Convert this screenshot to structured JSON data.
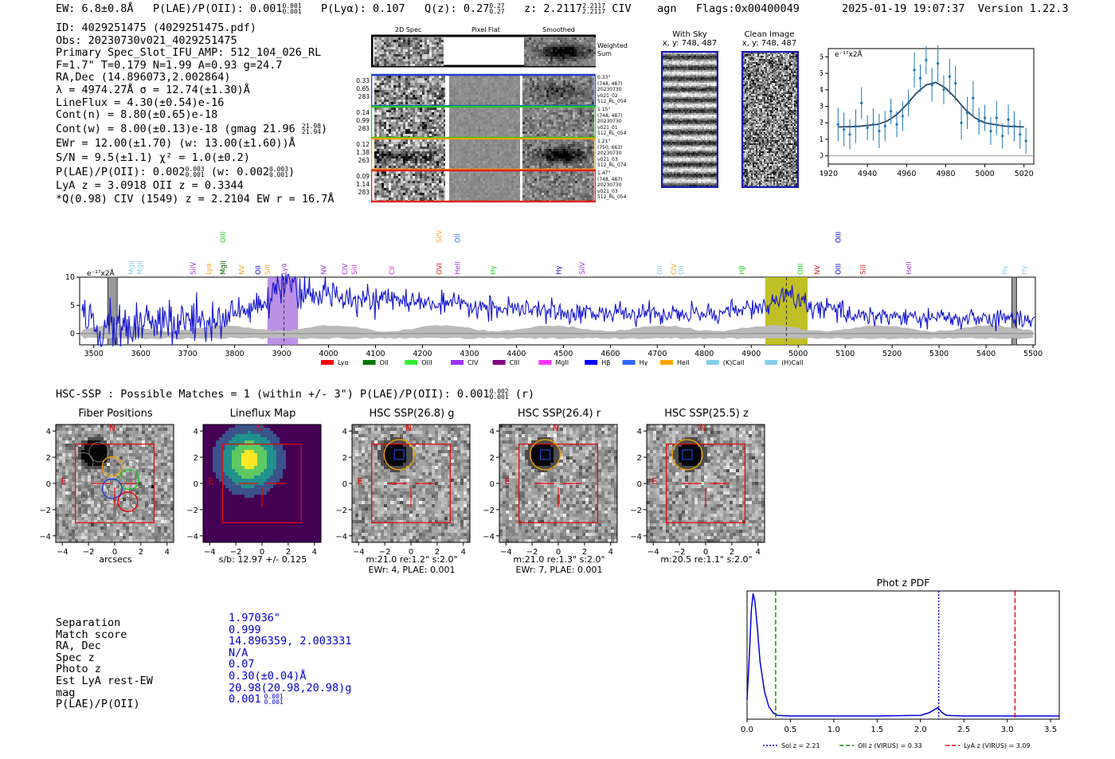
{
  "header": {
    "ew": "EW: 6.8±0.8Å",
    "plae_prefix": "P(LAE)/P(OII): 0.001",
    "plae_hi": "0.001",
    "plae_lo": "0.001",
    "plya": "P(Lyα): 0.107",
    "qz_prefix": "Q(z): 0.27",
    "qz_hi": "0.27",
    "qz_lo": "0.27",
    "z_prefix": "z: 2.2117",
    "z_hi": "2.2117",
    "z_lo": "2.2117",
    "line": "CIV",
    "agn": "agn",
    "flags": "Flags:0x00400049",
    "datetime": "2025-01-19 19:07:37",
    "version": "Version 1.22.3"
  },
  "info": {
    "id": "ID: 4029251475 (4029251475.pdf)",
    "obs": "Obs: 20230730v021_4029251475",
    "primary": "Primary Spec_Slot_IFU_AMP: 512_104_026_RL",
    "fit": "F=1.7\"  T=0.179  N=1.99  A=0.93  g=24.7",
    "radec": "RA,Dec (14.896073,2.002864)",
    "lambda": "λ = 4974.27Å  σ = 12.74(±1.30)Å",
    "lineflux": "LineFlux = 4.30(±0.54)e-16",
    "contn": "Cont(n) = 8.80(±0.65)e-18",
    "contw_prefix": "Cont(w) = 8.00(±0.13)e-18 (gmag 21.96",
    "contw_hi": "21.98",
    "contw_lo": "21.94",
    "contw_suffix": ")",
    "ewr": "EWr = 12.00(±1.70) (w: 13.00(±1.60))Å",
    "sn": "S/N = 9.5(±1.1)  χ² = 1.0(±0.2)",
    "plae_prefix": "P(LAE)/P(OII): 0.002",
    "plae_hi": "0.003",
    "plae_lo": "0.001",
    "plae_mid": "(w: 0.002",
    "plae_w_hi": "0.003",
    "plae_w_lo": "0.001",
    "plae_suffix": ")",
    "lya": "LyA z = 3.0918  OII z = 0.3344",
    "civ": "*Q(0.98) CIV (1549) z = 2.2104  EW r = 16.7Å"
  },
  "cutouts": {
    "col_2d": "2D Spec",
    "col_flat": "Pixel Flat",
    "col_smooth": "Smoothed",
    "weighted": "Weighted Sum",
    "rows": [
      {
        "l1": "0.33",
        "l2": "0.65",
        "l3": "283",
        "r1": "0.33\"",
        "r2": "(748, 487)",
        "r3": "20230730",
        "r4": "v021_02",
        "r5": "512_RL_054",
        "color": "#1f3fd6"
      },
      {
        "l1": "0.14",
        "l2": "0.99",
        "l3": "283",
        "r1": "1.15\"",
        "r2": "(748, 487)",
        "r3": "20230730",
        "r4": "v021_01",
        "r5": "512_RL_054",
        "color": "#22cc22"
      },
      {
        "l1": "0.12",
        "l2": "1.38",
        "l3": "263",
        "r1": "1.21\"",
        "r2": "(750, 663)",
        "r3": "20230730",
        "r4": "v021_03",
        "r5": "512_RL_074",
        "color": "#f0a000"
      },
      {
        "l1": "0.09",
        "l2": "1.14",
        "l3": "283",
        "r1": "1.47\"",
        "r2": "(748, 487)",
        "r3": "20230730",
        "r4": "v021_03",
        "r5": "512_RL_054",
        "color": "#dd2222"
      }
    ]
  },
  "ccd": {
    "sky_title": "With Sky",
    "sky_xy": "x, y: 748, 487",
    "clean_title": "Clean Image",
    "clean_xy": "x, y: 748, 487"
  },
  "zoom_spec": {
    "ylabel": "e⁻¹⁷x2Å",
    "xticks": [
      "4920",
      "4940",
      "4960",
      "4980",
      "5000",
      "5020"
    ],
    "yticks": [
      "0",
      "1",
      "2",
      "3",
      "4",
      "5",
      "6"
    ]
  },
  "main_spec": {
    "ylabel": "e⁻¹⁷x2Å",
    "xticks": [
      "3500",
      "3600",
      "3700",
      "3800",
      "3900",
      "4000",
      "4100",
      "4200",
      "4300",
      "4400",
      "4500",
      "4600",
      "4700",
      "4800",
      "4900",
      "5000",
      "5100",
      "5200",
      "5300",
      "5400",
      "5500"
    ],
    "yticks": [
      "0",
      "5",
      "10"
    ],
    "line_labels": [
      {
        "t": "MgII",
        "w": 3580,
        "c": "#87ceeb",
        "row": 1
      },
      {
        "t": "MgII",
        "w": 3598,
        "c": "#87ceeb",
        "row": 1
      },
      {
        "t": "SiIV",
        "w": 3712,
        "c": "#9933cc",
        "row": 1
      },
      {
        "t": "Lyα",
        "w": 3745,
        "c": "#f5a623",
        "row": 1
      },
      {
        "t": "MgII",
        "w": 3775,
        "c": "#006400",
        "row": 1
      },
      {
        "t": "OIII",
        "w": 3775,
        "c": "#22cc22",
        "row": 0
      },
      {
        "t": "NV",
        "w": 3815,
        "c": "#f5a623",
        "row": 1
      },
      {
        "t": "OII",
        "w": 3850,
        "c": "#0000cc",
        "row": 1
      },
      {
        "t": "SiII",
        "w": 3870,
        "c": "#f5a623",
        "row": 1
      },
      {
        "t": "Lyα",
        "w": 3905,
        "c": "#9933cc",
        "row": 1
      },
      {
        "t": "NV",
        "w": 3990,
        "c": "#9933cc",
        "row": 1
      },
      {
        "t": "CIV",
        "w": 4035,
        "c": "#9933cc",
        "row": 1
      },
      {
        "t": "SiII",
        "w": 4055,
        "c": "#cc33cc",
        "row": 1
      },
      {
        "t": "CII",
        "w": 4135,
        "c": "#cc33cc",
        "row": 1
      },
      {
        "t": "OVI",
        "w": 4236,
        "c": "#dd2222",
        "row": 1
      },
      {
        "t": "SiIV",
        "w": 4236,
        "c": "#f5a623",
        "row": 0
      },
      {
        "t": "HeII",
        "w": 4275,
        "c": "#9933cc",
        "row": 1
      },
      {
        "t": "OII",
        "w": 4275,
        "c": "#3366ff",
        "row": 0
      },
      {
        "t": "Hγ",
        "w": 4350,
        "c": "#22cc22",
        "row": 1
      },
      {
        "t": "Hγ",
        "w": 4490,
        "c": "#0000cc",
        "row": 1
      },
      {
        "t": "SiIV",
        "w": 4540,
        "c": "#9933cc",
        "row": 1
      },
      {
        "t": "OII",
        "w": 4705,
        "c": "#87ceeb",
        "row": 1
      },
      {
        "t": "CIV",
        "w": 4735,
        "c": "#f5a623",
        "row": 1
      },
      {
        "t": "OII",
        "w": 4750,
        "c": "#87ceeb",
        "row": 1
      },
      {
        "t": "Hβ",
        "w": 4880,
        "c": "#22cc22",
        "row": 1
      },
      {
        "t": "OIII",
        "w": 5005,
        "c": "#22cc22",
        "row": 1
      },
      {
        "t": "NV",
        "w": 5040,
        "c": "#dd2222",
        "row": 1
      },
      {
        "t": "OIII",
        "w": 5085,
        "c": "#0000cc",
        "row": 1
      },
      {
        "t": "OIII",
        "w": 5085,
        "c": "#0000cc",
        "row": 0
      },
      {
        "t": "SiII",
        "w": 5138,
        "c": "#dd2222",
        "row": 1
      },
      {
        "t": "HeII",
        "w": 5235,
        "c": "#9933cc",
        "row": 1
      },
      {
        "t": "Hγ",
        "w": 5440,
        "c": "#87ceeb",
        "row": 1
      },
      {
        "t": "Hγ",
        "w": 5480,
        "c": "#87ceeb",
        "row": 1
      }
    ],
    "legend": [
      {
        "t": "Lyα",
        "c": "#ff0000"
      },
      {
        "t": "OII",
        "c": "#007700"
      },
      {
        "t": "OIII",
        "c": "#33ee33"
      },
      {
        "t": "CIV",
        "c": "#9933ff"
      },
      {
        "t": "CIII",
        "c": "#800080"
      },
      {
        "t": "MgII",
        "c": "#ff33ff"
      },
      {
        "t": "Hβ",
        "c": "#0000ff"
      },
      {
        "t": "Hγ",
        "c": "#3366ff"
      },
      {
        "t": "HeII",
        "c": "#ffa500"
      },
      {
        "t": "(K)CaII",
        "c": "#87ceeb"
      },
      {
        "t": "(H)CaII",
        "c": "#87ceeb"
      }
    ]
  },
  "hsc": {
    "title_prefix": "HSC-SSP : Possible Matches = 1 (within +/- 3\")  P(LAE)/P(OII): 0.001",
    "title_hi": "0.002",
    "title_lo": "0.001",
    "title_suffix": "(r)",
    "panels": [
      {
        "title": "Fiber Positions",
        "cap1": "arcsecs",
        "cap2": ""
      },
      {
        "title": "Lineflux Map",
        "cap1": "s/b: 12.97 +/- 0.125",
        "cap2": ""
      },
      {
        "title": "HSC SSP(26.8) g",
        "cap1": "m:21.0  re:1.2\"  s:2.0\"",
        "cap2": "EWr: 4, PLAE: 0.001"
      },
      {
        "title": "HSC SSP(26.4) r",
        "cap1": "m:21.0  re:1.3\"  s:2.0\"",
        "cap2": "EWr: 7, PLAE: 0.001"
      },
      {
        "title": "HSC SSP(25.5) z",
        "cap1": "m:20.5  re:1.1\"  s:2.0\"",
        "cap2": ""
      }
    ],
    "axis_ticks": [
      "−4",
      "−2",
      "0",
      "2",
      "4"
    ],
    "north": "N",
    "east": "E"
  },
  "match_table": {
    "rows": [
      {
        "label": "Separation",
        "value": "1.97036\""
      },
      {
        "label": "Match score",
        "value": "0.999"
      },
      {
        "label": "RA, Dec",
        "value": "14.896359, 2.003331"
      },
      {
        "label": "Spec z",
        "value": "N/A"
      },
      {
        "label": "Photo z",
        "value": "0.07"
      },
      {
        "label": "Est LyA rest-EW",
        "value": "0.30(±0.04)Å"
      },
      {
        "label": "mag",
        "value": "20.98(20.98,20.98)g"
      },
      {
        "label": "P(LAE)/P(OII)",
        "value": "0.001"
      }
    ],
    "plae_hi": "0.001",
    "plae_lo": "0.001"
  },
  "chart_data": [
    {
      "type": "line",
      "title": "",
      "xlabel": "",
      "ylabel": "e⁻¹⁷x2Å",
      "xlim": [
        4920,
        5025
      ],
      "ylim": [
        -0.5,
        6.5
      ],
      "series": [
        {
          "name": "data",
          "x": [
            4925,
            4928,
            4931,
            4934,
            4937,
            4940,
            4943,
            4946,
            4949,
            4952,
            4955,
            4958,
            4961,
            4964,
            4967,
            4970,
            4973,
            4976,
            4979,
            4982,
            4985,
            4988,
            4991,
            4994,
            4997,
            5000,
            5003,
            5006,
            5009,
            5012,
            5015,
            5018,
            5021
          ],
          "y": [
            1.9,
            1.6,
            1.3,
            1.8,
            3.2,
            1.7,
            1.9,
            1.5,
            1.8,
            2.7,
            1.9,
            2.4,
            3.2,
            5.2,
            4.7,
            5.8,
            4.3,
            5.6,
            4.0,
            4.8,
            4.4,
            2.0,
            2.6,
            3.5,
            2.1,
            2.3,
            1.5,
            2.3,
            1.2,
            2.2,
            1.8,
            1.3,
            0.9
          ]
        },
        {
          "name": "fit",
          "x": [
            4925,
            4935,
            4945,
            4950,
            4955,
            4960,
            4965,
            4970,
            4975,
            4980,
            4985,
            4990,
            4995,
            5000,
            5010,
            5020
          ],
          "y": [
            1.75,
            1.78,
            1.9,
            2.1,
            2.5,
            3.1,
            3.8,
            4.3,
            4.45,
            4.1,
            3.5,
            2.8,
            2.3,
            2.0,
            1.8,
            1.75
          ]
        }
      ],
      "xticks": [
        4920,
        4940,
        4960,
        4980,
        5000,
        5020
      ]
    },
    {
      "type": "line",
      "title": "",
      "xlabel": "",
      "ylabel": "e⁻¹⁷x2Å",
      "xlim": [
        3470,
        5505
      ],
      "ylim": [
        -2,
        10
      ],
      "highlight_bands": [
        {
          "from": 3870,
          "to": 3935,
          "color": "#b07ee0",
          "label": "Lyα"
        },
        {
          "from": 4930,
          "to": 5020,
          "color": "#b5b500",
          "label": "CIV"
        }
      ],
      "gray_bands": [
        {
          "from": 3530,
          "to": 3550
        },
        {
          "from": 5455,
          "to": 5465
        }
      ],
      "envelope": [
        {
          "x": 3500,
          "v": 6
        },
        {
          "x": 3600,
          "v": 12
        },
        {
          "x": 3700,
          "v": 22
        },
        {
          "x": 3800,
          "v": 33
        },
        {
          "x": 3900,
          "v": 59
        },
        {
          "x": 4000,
          "v": 72
        },
        {
          "x": 4100,
          "v": 62
        },
        {
          "x": 4200,
          "v": 55
        },
        {
          "x": 4300,
          "v": 48
        },
        {
          "x": 4400,
          "v": 42
        },
        {
          "x": 4500,
          "v": 38
        },
        {
          "x": 4600,
          "v": 36
        },
        {
          "x": 4700,
          "v": 34
        },
        {
          "x": 4800,
          "v": 35
        },
        {
          "x": 4900,
          "v": 44
        },
        {
          "x": 4980,
          "v": 58
        },
        {
          "x": 5100,
          "v": 36
        },
        {
          "x": 5200,
          "v": 30
        },
        {
          "x": 5300,
          "v": 27
        },
        {
          "x": 5400,
          "v": 26
        },
        {
          "x": 5500,
          "v": 25
        }
      ],
      "xticks": [
        3500,
        3600,
        3700,
        3800,
        3900,
        4000,
        4100,
        4200,
        4300,
        4400,
        4500,
        4600,
        4700,
        4800,
        4900,
        5000,
        5100,
        5200,
        5300,
        5400,
        5500
      ]
    },
    {
      "type": "line",
      "title": "Phot z PDF",
      "xlabel": "",
      "ylabel": "",
      "xlim": [
        0.0,
        3.6
      ],
      "ylim": [
        0,
        1.0
      ],
      "series": [
        {
          "name": "pdf",
          "x": [
            0.0,
            0.03,
            0.05,
            0.07,
            0.09,
            0.12,
            0.15,
            0.2,
            0.25,
            0.3,
            0.35,
            0.5,
            1.0,
            1.5,
            2.0,
            2.1,
            2.15,
            2.2,
            2.25,
            2.3,
            2.5,
            3.0,
            3.6
          ],
          "y": [
            0.15,
            0.55,
            0.85,
            0.98,
            0.92,
            0.7,
            0.45,
            0.22,
            0.1,
            0.05,
            0.03,
            0.025,
            0.025,
            0.025,
            0.03,
            0.05,
            0.07,
            0.09,
            0.05,
            0.03,
            0.025,
            0.025,
            0.025
          ]
        }
      ],
      "vlines": [
        {
          "x": 2.21,
          "color": "#0000dd",
          "style": "dotted",
          "label": "Sol z = 2.21"
        },
        {
          "x": 0.33,
          "color": "#008800",
          "style": "dashed",
          "label": "OII z (VIRUS) = 0.33"
        },
        {
          "x": 3.09,
          "color": "#dd0000",
          "style": "dashed",
          "label": "LyA z (VIRUS) = 3.09"
        }
      ],
      "xticks": [
        "0.0",
        "0.5",
        "1.0",
        "1.5",
        "2.0",
        "2.5",
        "3.0",
        "3.5"
      ]
    }
  ]
}
